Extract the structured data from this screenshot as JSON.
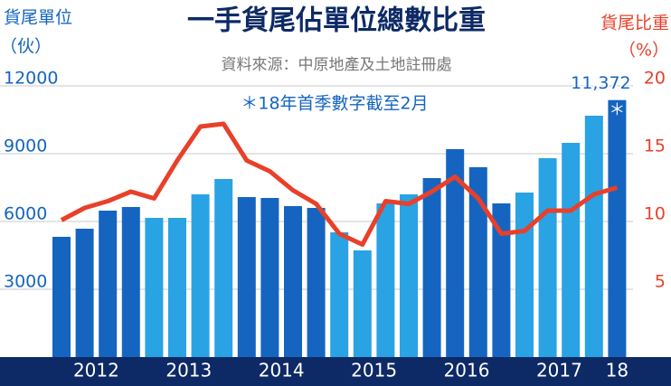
{
  "chart_data": {
    "type": "bar_line",
    "title": "一手貨尾佔單位總數比重",
    "subtitle": "資料來源：中原地產及土地註冊處",
    "annotation": "＊18年首季數字截至2月",
    "y_label": "貨尾單位",
    "y_unit": "（伙）",
    "y2_label": "貨尾比重",
    "y2_unit": "（%）",
    "marker": "＊",
    "categories": [
      "2012",
      "2012",
      "2012",
      "2012",
      "2013",
      "2013",
      "2013",
      "2013",
      "2014",
      "2014",
      "2014",
      "2014",
      "2015",
      "2015",
      "2015",
      "2015",
      "2016",
      "2016",
      "2016",
      "2016",
      "2017",
      "2017",
      "2017",
      "2017",
      "18"
    ],
    "series": [
      {
        "type": "bar",
        "bar_colors": [
          "#1565c0",
          "#1565c0",
          "#1565c0",
          "#1565c0",
          "#29a3e3",
          "#29a3e3",
          "#29a3e3",
          "#29a3e3",
          "#1565c0",
          "#1565c0",
          "#1565c0",
          "#1565c0",
          "#29a3e3",
          "#29a3e3",
          "#29a3e3",
          "#29a3e3",
          "#1565c0",
          "#1565c0",
          "#1565c0",
          "#1565c0",
          "#29a3e3",
          "#29a3e3",
          "#29a3e3",
          "#29a3e3",
          "#1565c0"
        ],
        "values": [
          5320,
          5680,
          6480,
          6640,
          6160,
          6160,
          7200,
          7880,
          7080,
          7040,
          6680,
          6600,
          5520,
          4720,
          6800,
          7200,
          7920,
          9200,
          8400,
          6800,
          7280,
          8800,
          9480,
          10680,
          11372
        ],
        "value_labels": [
          null,
          null,
          null,
          null,
          null,
          null,
          null,
          null,
          null,
          null,
          null,
          null,
          null,
          null,
          null,
          null,
          null,
          null,
          null,
          null,
          null,
          null,
          null,
          null,
          "11,372"
        ]
      },
      {
        "type": "line",
        "axis": "y2",
        "color": "#e8402a",
        "values": [
          10.1,
          11.0,
          11.5,
          12.2,
          11.7,
          14.5,
          17.0,
          17.2,
          14.5,
          13.7,
          12.3,
          11.3,
          9.1,
          8.3,
          11.5,
          11.3,
          12.2,
          13.3,
          11.7,
          9.1,
          9.3,
          10.8,
          10.8,
          12.0,
          12.5
        ]
      }
    ],
    "ylim": [
      0,
      12000
    ],
    "yticks": [
      3000,
      6000,
      9000,
      12000
    ],
    "y2lim": [
      0,
      20
    ],
    "y2ticks": [
      5,
      10,
      15,
      20
    ],
    "grid": true
  }
}
